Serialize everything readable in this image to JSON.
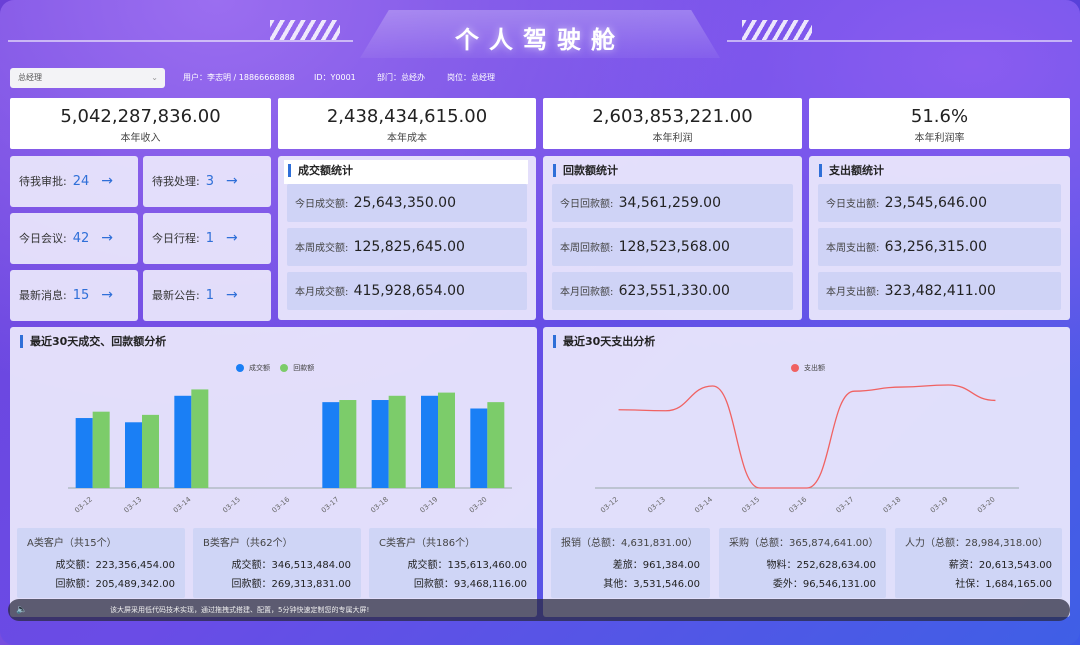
{
  "header": {
    "title": "个人驾驶舱"
  },
  "user_bar": {
    "role_select": "总经理",
    "user": "用户：李志明 / 18866668888",
    "id": "ID：Y0001",
    "dept": "部门：总经办",
    "post": "岗位：总经理"
  },
  "kpis": [
    {
      "value": "5,042,287,836.00",
      "label": "本年收入"
    },
    {
      "value": "2,438,434,615.00",
      "label": "本年成本"
    },
    {
      "value": "2,603,853,221.00",
      "label": "本年利润"
    },
    {
      "value": "51.6%",
      "label": "本年利润率"
    }
  ],
  "tasks": [
    {
      "label": "待我审批:",
      "count": "24"
    },
    {
      "label": "待我处理:",
      "count": "3"
    },
    {
      "label": "今日会议:",
      "count": "42"
    },
    {
      "label": "今日行程:",
      "count": "1"
    },
    {
      "label": "最新消息:",
      "count": "15"
    },
    {
      "label": "最新公告:",
      "count": "1"
    }
  ],
  "arrow": "→",
  "panels": {
    "deal": {
      "title": "成交额统计",
      "rows": [
        {
          "label": "今日成交额:",
          "value": "25,643,350.00"
        },
        {
          "label": "本周成交额:",
          "value": "125,825,645.00"
        },
        {
          "label": "本月成交额:",
          "value": "415,928,654.00"
        }
      ]
    },
    "refund": {
      "title": "回款额统计",
      "rows": [
        {
          "label": "今日回款额:",
          "value": "34,561,259.00"
        },
        {
          "label": "本周回款额:",
          "value": "128,523,568.00"
        },
        {
          "label": "本月回款额:",
          "value": "623,551,330.00"
        }
      ]
    },
    "expense": {
      "title": "支出额统计",
      "rows": [
        {
          "label": "今日支出额:",
          "value": "23,545,646.00"
        },
        {
          "label": "本周支出额:",
          "value": "63,256,315.00"
        },
        {
          "label": "本月支出额:",
          "value": "323,482,411.00"
        }
      ]
    }
  },
  "chart_left_title": "最近30天成交、回款额分析",
  "chart_right_title": "最近30天支出分析",
  "customers": [
    {
      "head": "A类客户（共15个）",
      "deal": "成交额：223,356,454.00",
      "refund": "回款额：205,489,342.00"
    },
    {
      "head": "B类客户（共62个）",
      "deal": "成交额：346,513,484.00",
      "refund": "回款额：269,313,831.00"
    },
    {
      "head": "C类客户（共186个）",
      "deal": "成交额：135,613,460.00",
      "refund": "回款额：93,468,116.00"
    }
  ],
  "expense_cats": [
    {
      "head": "报销（总额：4,631,831.00）",
      "a": "差旅：961,384.00",
      "b": "其他：3,531,546.00"
    },
    {
      "head": "采购（总额：365,874,641.00）",
      "a": "物料：252,628,634.00",
      "b": "委外：96,546,131.00"
    },
    {
      "head": "人力（总额：28,984,318.00）",
      "a": "薪资：20,613,543.00",
      "b": "社保：1,684,165.00"
    }
  ],
  "footer": {
    "text": "该大屏采用低代码技术实现，通过拖拽式搭建、配置，5分钟快速定制您的专属大屏!"
  },
  "colors": {
    "deal": "#1a7ff5",
    "refund": "#7ccc6a",
    "expense": "#f06262",
    "accent": "#2f6fd8"
  },
  "chart_data": [
    {
      "type": "bar",
      "title": "最近30天成交、回款额分析",
      "categories": [
        "03-12",
        "03-13",
        "03-14",
        "03-15",
        "03-16",
        "03-17",
        "03-18",
        "03-19",
        "03-20"
      ],
      "series": [
        {
          "name": "成交额",
          "values": [
            66,
            62,
            87,
            0,
            0,
            81,
            83,
            87,
            75
          ]
        },
        {
          "name": "回款额",
          "values": [
            72,
            69,
            93,
            0,
            0,
            83,
            87,
            90,
            81
          ]
        }
      ],
      "ylim": [
        0,
        100
      ],
      "grid": false,
      "legend": "top-center"
    },
    {
      "type": "line",
      "title": "最近30天支出分析",
      "categories": [
        "03-12",
        "03-13",
        "03-14",
        "03-15",
        "03-16",
        "03-17",
        "03-18",
        "03-19",
        "03-20"
      ],
      "series": [
        {
          "name": "支出额",
          "values": [
            76,
            75,
            99,
            0,
            0,
            94,
            98,
            100,
            85
          ]
        }
      ],
      "ylim": [
        0,
        100
      ],
      "grid": false,
      "legend": "top-center"
    }
  ]
}
